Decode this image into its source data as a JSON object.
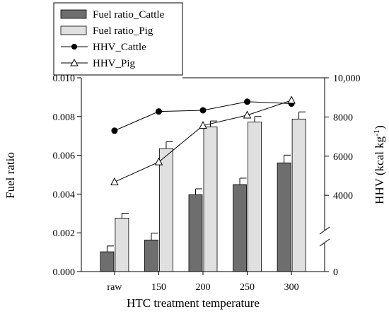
{
  "chart_data": {
    "type": "bar",
    "xlabel": "HTC treatment temperature",
    "ylabel_left": "Fuel ratio",
    "ylabel_right_main": "HHV (kcal kg",
    "ylabel_right_sup": "-1",
    "ylabel_right_close": ")",
    "categories": [
      "raw",
      "150",
      "200",
      "250",
      "300"
    ],
    "left_axis": {
      "ylim": [
        0.0,
        0.01
      ],
      "ticks": [
        0.0,
        0.002,
        0.004,
        0.006,
        0.008,
        0.01
      ],
      "tick_labels": [
        "0.000",
        "0.002",
        "0.004",
        "0.006",
        "0.008",
        "0.010"
      ]
    },
    "right_axis": {
      "broken": true,
      "lower_segment": {
        "range": [
          0,
          2000
        ],
        "ticks": [
          0
        ],
        "tick_labels": [
          "0"
        ]
      },
      "upper_segment": {
        "range": [
          2200,
          10000
        ],
        "ticks": [
          4000,
          6000,
          8000,
          10000
        ],
        "tick_labels": [
          "4000",
          "6000",
          "8000",
          "10,000"
        ]
      }
    },
    "bar_series": [
      {
        "name": "Fuel ratio_Cattle",
        "color": "#6e6e6e",
        "values": [
          0.00102,
          0.00163,
          0.00397,
          0.00449,
          0.00561
        ],
        "errors": [
          0.0003,
          0.00035,
          0.0003,
          0.00033,
          0.0004
        ]
      },
      {
        "name": "Fuel ratio_Pig",
        "color": "#e0e0e0",
        "values": [
          0.00276,
          0.00635,
          0.00747,
          0.00772,
          0.00787
        ],
        "errors": [
          0.00025,
          0.00035,
          0.0003,
          0.00028,
          0.00037
        ]
      }
    ],
    "line_series": [
      {
        "name": "HHV_Cattle",
        "marker": "filled-circle",
        "values": [
          7300,
          8280,
          8340,
          8780,
          8680
        ]
      },
      {
        "name": "HHV_Pig",
        "marker": "open-triangle",
        "values": [
          4680,
          5700,
          7560,
          8090,
          8850
        ]
      }
    ],
    "legend": {
      "placement": "top-left, partly above plot"
    }
  }
}
